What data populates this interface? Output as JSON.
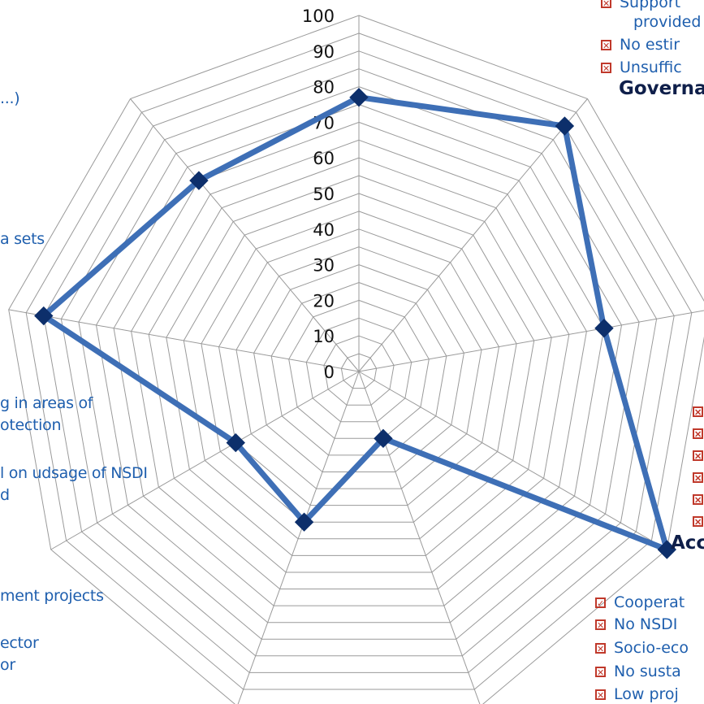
{
  "chart_data": {
    "type": "radar",
    "r_range": [
      0,
      100
    ],
    "r_ticks": [
      "0",
      "10",
      "20",
      "30",
      "40",
      "50",
      "60",
      "70",
      "80",
      "90",
      "100"
    ],
    "grid": true,
    "series": [
      {
        "values": [
          77,
          90,
          70,
          100,
          20,
          45,
          40,
          90,
          70
        ]
      }
    ],
    "color": "#3e6fb6",
    "marker_color": "#0d2f6b"
  },
  "labels": {
    "left": [
      "...)",
      "a  sets",
      "g  in areas of",
      "otection",
      "l on udsage of NSDI",
      "d",
      "ment  projects",
      "ector",
      "or"
    ],
    "governance_heading": "Governa",
    "access_heading": "Acc"
  },
  "legend_top": [
    {
      "text": "Support",
      "mark": "x"
    },
    {
      "text": "provided",
      "mark": ""
    },
    {
      "text": "No  estir",
      "mark": "x"
    },
    {
      "text": "Unsuffic",
      "mark": "x"
    }
  ],
  "legend_bottom": [
    {
      "text": "Cooperat",
      "mark": "check"
    },
    {
      "text": "No NSDI",
      "mark": "x"
    },
    {
      "text": "Socio-eco",
      "mark": "x"
    },
    {
      "text": "No susta",
      "mark": "x"
    },
    {
      "text": "Low proj",
      "mark": "x"
    }
  ],
  "colors": {
    "label_blue": "#1f5fae",
    "heading": "#0f1f4a",
    "checkbox": "#c0392b",
    "grid": "#9a9a9a"
  }
}
